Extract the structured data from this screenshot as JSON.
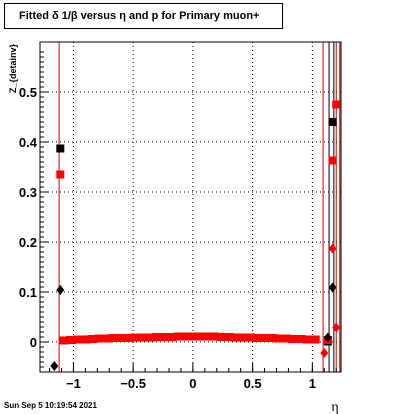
{
  "title": "Fitted δ 1/β versus η and p for Primary muon+",
  "timestamp": "Sun Sep  5 10:19:54 2021",
  "chart_data": {
    "type": "scatter",
    "title": "Fitted δ 1/β versus η and p for Primary muon+",
    "xlabel": "η",
    "ylabel": "Z_{detainv}",
    "xlim": [
      -1.28,
      1.24
    ],
    "ylim": [
      -0.06,
      0.6
    ],
    "xticks": [
      -1,
      -0.5,
      0,
      0.5,
      1
    ],
    "xtick_labels": [
      "−1",
      "−0.5",
      "0",
      "0.5",
      "1"
    ],
    "yticks": [
      0,
      0.1,
      0.2,
      0.3,
      0.4,
      0.5
    ],
    "ytick_labels": [
      "0",
      "0.1",
      "0.2",
      "0.3",
      "0.4",
      "0.5"
    ],
    "grid": true,
    "vertical_lines": [
      {
        "x": -1.12,
        "color": "#cc0000"
      },
      {
        "x": 1.09,
        "color": "#cc0000"
      },
      {
        "x": 1.14,
        "color": "#000000"
      },
      {
        "x": 1.18,
        "color": "#000000"
      },
      {
        "x": 1.2,
        "color": "#cc0000"
      },
      {
        "x": 1.23,
        "color": "#cc0000"
      }
    ],
    "series": [
      {
        "marker": "square",
        "color": "#000000",
        "points": [
          [
            -1.11,
            0.387
          ],
          [
            1.17,
            0.44
          ],
          [
            1.13,
            0.001
          ]
        ]
      },
      {
        "marker": "square",
        "color": "#ff0000",
        "points": [
          [
            -1.11,
            0.335
          ],
          [
            1.2,
            0.475
          ],
          [
            1.17,
            0.363
          ],
          [
            1.13,
            0.004
          ]
        ]
      },
      {
        "marker": "diamond",
        "color": "#000000",
        "points": [
          [
            -1.16,
            -0.048
          ],
          [
            -1.11,
            0.104
          ],
          [
            1.17,
            0.109
          ],
          [
            1.13,
            0.009
          ]
        ]
      },
      {
        "marker": "diamond",
        "color": "#ff0000",
        "points": [
          [
            1.17,
            0.187
          ],
          [
            1.1,
            -0.022
          ],
          [
            1.2,
            0.029
          ]
        ]
      },
      {
        "marker": "band",
        "color": "#ff0000",
        "x": [
          -1.08,
          -1.02,
          -0.96,
          -0.9,
          -0.84,
          -0.78,
          -0.72,
          -0.66,
          -0.6,
          -0.54,
          -0.48,
          -0.42,
          -0.36,
          -0.3,
          -0.24,
          -0.18,
          -0.12,
          -0.06,
          0,
          0.06,
          0.12,
          0.18,
          0.24,
          0.3,
          0.36,
          0.42,
          0.48,
          0.54,
          0.6,
          0.66,
          0.72,
          0.78,
          0.84,
          0.9,
          0.96,
          1.02
        ],
        "y": [
          0.003,
          0.004,
          0.005,
          0.005,
          0.006,
          0.007,
          0.007,
          0.008,
          0.008,
          0.008,
          0.009,
          0.009,
          0.009,
          0.01,
          0.01,
          0.01,
          0.011,
          0.011,
          0.011,
          0.011,
          0.011,
          0.011,
          0.01,
          0.01,
          0.009,
          0.009,
          0.009,
          0.008,
          0.008,
          0.008,
          0.007,
          0.007,
          0.006,
          0.006,
          0.005,
          0.005
        ],
        "err": 0.008
      }
    ]
  }
}
